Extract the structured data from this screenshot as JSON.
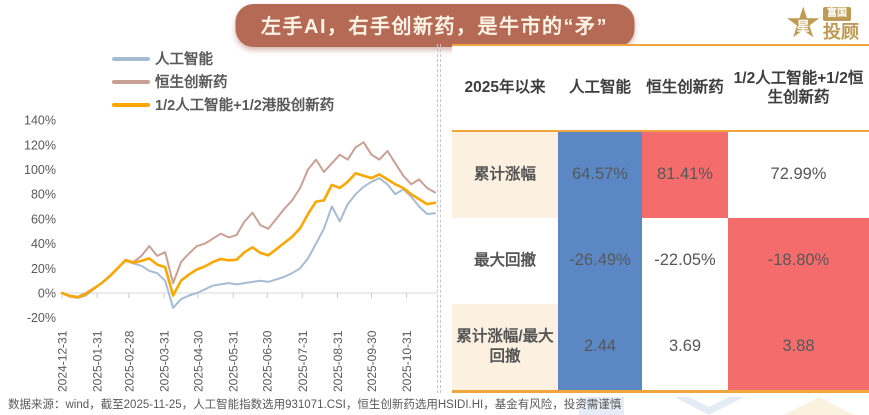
{
  "header": {
    "title": "左手AI，右手创新药，是牛市的“矛”"
  },
  "logo": {
    "star_glyph": "★",
    "star_char": "星",
    "box_text": "富国",
    "main_text": "投顾"
  },
  "legend": {
    "items": [
      {
        "label": "人工智能",
        "color": "#a7bbd3"
      },
      {
        "label": "恒生创新药",
        "color": "#c8a096"
      },
      {
        "label": "1/2人工智能+1/2港股创新药",
        "color": "#faa702"
      }
    ]
  },
  "chart_data": {
    "type": "line",
    "title": "",
    "xlabel": "",
    "ylabel": "",
    "ylim": [
      -20,
      140
    ],
    "grid": false,
    "legend_position": "top-left",
    "y_tick_labels": [
      "140%",
      "120%",
      "100%",
      "80%",
      "60%",
      "40%",
      "20%",
      "0%",
      "-20%"
    ],
    "y_tick_values": [
      140,
      120,
      100,
      80,
      60,
      40,
      20,
      0,
      -20
    ],
    "x_tick_labels": [
      "2024-12-31",
      "2025-01-31",
      "2025-02-28",
      "2025-03-31",
      "2025-04-30",
      "2025-05-31",
      "2025-06-30",
      "2025-07-31",
      "2025-08-31",
      "2025-09-30",
      "2025-10-31"
    ],
    "x_tick_days": [
      0,
      31,
      59,
      90,
      120,
      151,
      181,
      212,
      243,
      273,
      304
    ],
    "x_total_days": 329,
    "sample_interval_days": 7,
    "series": [
      {
        "name": "人工智能",
        "color": "#a7bbd3",
        "width": 2,
        "values": [
          0,
          -3,
          -4,
          -2,
          3,
          8,
          14,
          20,
          26,
          24,
          22,
          18,
          16,
          10,
          -12,
          -5,
          -2,
          0,
          3,
          6,
          7,
          8,
          7,
          8,
          9,
          10,
          9,
          11,
          13,
          16,
          20,
          28,
          40,
          52,
          70,
          58,
          72,
          80,
          86,
          90,
          93,
          88,
          80,
          84,
          78,
          70,
          64,
          64.6
        ]
      },
      {
        "name": "恒生创新药",
        "color": "#c8a096",
        "width": 2,
        "values": [
          0,
          -2,
          -3,
          0,
          4,
          8,
          13,
          20,
          27,
          25,
          30,
          38,
          30,
          33,
          8,
          25,
          32,
          38,
          40,
          44,
          48,
          45,
          47,
          58,
          65,
          55,
          52,
          60,
          68,
          75,
          85,
          100,
          108,
          98,
          105,
          112,
          108,
          118,
          122,
          112,
          108,
          115,
          105,
          95,
          88,
          92,
          85,
          81.4
        ]
      },
      {
        "name": "1/2人工智能+1/2港股创新药",
        "color": "#faa702",
        "width": 2.6,
        "values": [
          0,
          -2.5,
          -3.5,
          -1,
          3.5,
          8,
          13.5,
          20,
          26.5,
          24.5,
          26,
          28,
          23,
          21,
          -2,
          10,
          15,
          19,
          21.5,
          25,
          27.5,
          26.5,
          27,
          33,
          37,
          32.5,
          30.5,
          35.5,
          40.5,
          45.5,
          52.5,
          64,
          74,
          75,
          87.5,
          85,
          90,
          97,
          95,
          93,
          96,
          92,
          88,
          85,
          80,
          76,
          72,
          73
        ]
      }
    ]
  },
  "table": {
    "headers": [
      "2025年以来",
      "人工智能",
      "恒生创新药",
      "1/2人工智能+1/2恒生创新药"
    ],
    "rows": [
      {
        "label": "累计涨幅",
        "label_bg": "cream",
        "cells": [
          {
            "text": "64.57%",
            "bg": "blue"
          },
          {
            "text": "81.41%",
            "bg": "red"
          },
          {
            "text": "72.99%",
            "bg": "white"
          }
        ]
      },
      {
        "label": "最大回撤",
        "label_bg": "white",
        "cells": [
          {
            "text": "-26.49%",
            "bg": "blue"
          },
          {
            "text": "-22.05%",
            "bg": "white"
          },
          {
            "text": "-18.80%",
            "bg": "red"
          }
        ]
      },
      {
        "label": "累计涨幅/最大回撤",
        "label_bg": "cream",
        "cells": [
          {
            "text": "2.44",
            "bg": "blue"
          },
          {
            "text": "3.69",
            "bg": "white"
          },
          {
            "text": "3.88",
            "bg": "red"
          }
        ]
      }
    ]
  },
  "footer": {
    "text": "数据来源：wind，截至2025-11-25，人工智能指数选用931071.CSI，恒生创新药选用HSIDI.HI，基金有风险，投资需谨慎"
  },
  "colors": {
    "title_bg": "#b46a55",
    "gold_line": "#f0a43c",
    "accent_text": "#595959",
    "logo_gold": "#bf9a55",
    "blue_cell": "#5b88c5",
    "red_cell": "#f56c6c",
    "cream_cell": "#fcf0e0",
    "white_cell": "#ffffff",
    "axis_text": "#595959",
    "axis_line": "#d9d9d9"
  }
}
